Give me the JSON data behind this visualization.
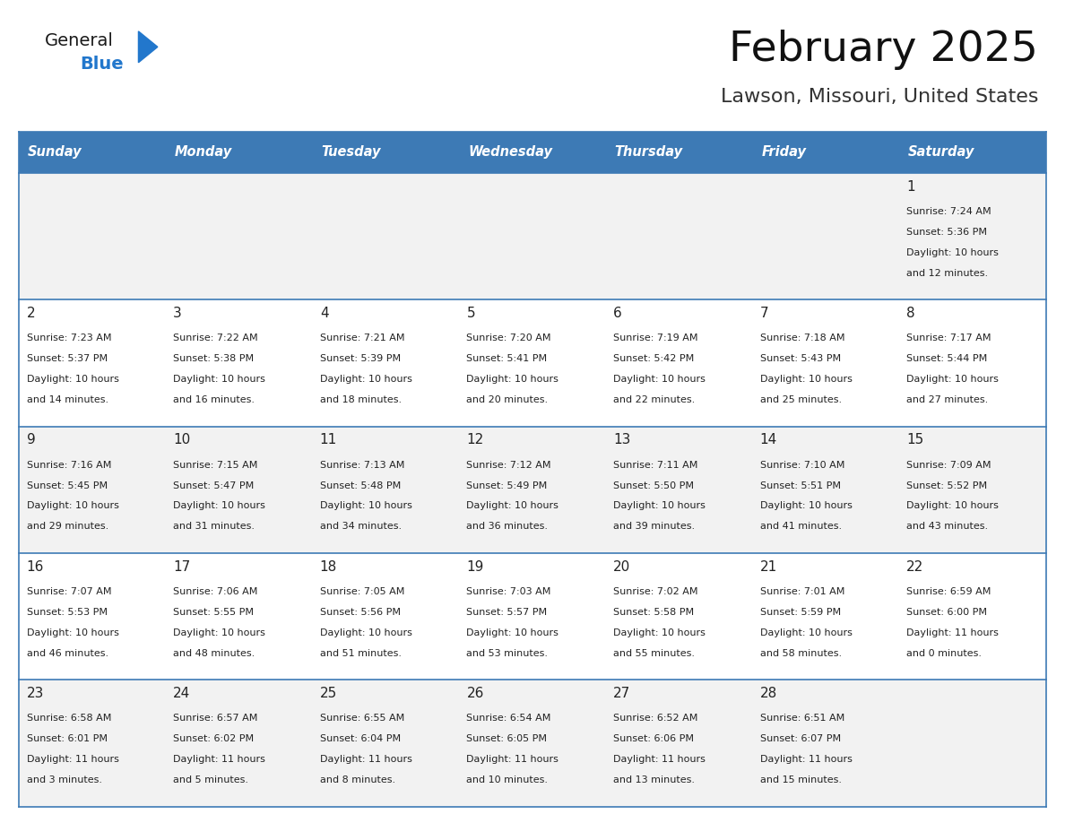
{
  "title": "February 2025",
  "subtitle": "Lawson, Missouri, United States",
  "header_bg": "#3D7AB5",
  "header_text_color": "#FFFFFF",
  "day_names": [
    "Sunday",
    "Monday",
    "Tuesday",
    "Wednesday",
    "Thursday",
    "Friday",
    "Saturday"
  ],
  "row_bg_odd": "#F2F2F2",
  "row_bg_even": "#FFFFFF",
  "cell_text_color": "#222222",
  "date_color": "#222222",
  "grid_line_color": "#3D7AB5",
  "logo_general_color": "#1a1a1a",
  "logo_blue_color": "#2277CC",
  "calendar_data": [
    [
      null,
      null,
      null,
      null,
      null,
      null,
      {
        "day": 1,
        "sunrise": "7:24 AM",
        "sunset": "5:36 PM",
        "daylight": "10 hours and 12 minutes"
      }
    ],
    [
      {
        "day": 2,
        "sunrise": "7:23 AM",
        "sunset": "5:37 PM",
        "daylight": "10 hours and 14 minutes"
      },
      {
        "day": 3,
        "sunrise": "7:22 AM",
        "sunset": "5:38 PM",
        "daylight": "10 hours and 16 minutes"
      },
      {
        "day": 4,
        "sunrise": "7:21 AM",
        "sunset": "5:39 PM",
        "daylight": "10 hours and 18 minutes"
      },
      {
        "day": 5,
        "sunrise": "7:20 AM",
        "sunset": "5:41 PM",
        "daylight": "10 hours and 20 minutes"
      },
      {
        "day": 6,
        "sunrise": "7:19 AM",
        "sunset": "5:42 PM",
        "daylight": "10 hours and 22 minutes"
      },
      {
        "day": 7,
        "sunrise": "7:18 AM",
        "sunset": "5:43 PM",
        "daylight": "10 hours and 25 minutes"
      },
      {
        "day": 8,
        "sunrise": "7:17 AM",
        "sunset": "5:44 PM",
        "daylight": "10 hours and 27 minutes"
      }
    ],
    [
      {
        "day": 9,
        "sunrise": "7:16 AM",
        "sunset": "5:45 PM",
        "daylight": "10 hours and 29 minutes"
      },
      {
        "day": 10,
        "sunrise": "7:15 AM",
        "sunset": "5:47 PM",
        "daylight": "10 hours and 31 minutes"
      },
      {
        "day": 11,
        "sunrise": "7:13 AM",
        "sunset": "5:48 PM",
        "daylight": "10 hours and 34 minutes"
      },
      {
        "day": 12,
        "sunrise": "7:12 AM",
        "sunset": "5:49 PM",
        "daylight": "10 hours and 36 minutes"
      },
      {
        "day": 13,
        "sunrise": "7:11 AM",
        "sunset": "5:50 PM",
        "daylight": "10 hours and 39 minutes"
      },
      {
        "day": 14,
        "sunrise": "7:10 AM",
        "sunset": "5:51 PM",
        "daylight": "10 hours and 41 minutes"
      },
      {
        "day": 15,
        "sunrise": "7:09 AM",
        "sunset": "5:52 PM",
        "daylight": "10 hours and 43 minutes"
      }
    ],
    [
      {
        "day": 16,
        "sunrise": "7:07 AM",
        "sunset": "5:53 PM",
        "daylight": "10 hours and 46 minutes"
      },
      {
        "day": 17,
        "sunrise": "7:06 AM",
        "sunset": "5:55 PM",
        "daylight": "10 hours and 48 minutes"
      },
      {
        "day": 18,
        "sunrise": "7:05 AM",
        "sunset": "5:56 PM",
        "daylight": "10 hours and 51 minutes"
      },
      {
        "day": 19,
        "sunrise": "7:03 AM",
        "sunset": "5:57 PM",
        "daylight": "10 hours and 53 minutes"
      },
      {
        "day": 20,
        "sunrise": "7:02 AM",
        "sunset": "5:58 PM",
        "daylight": "10 hours and 55 minutes"
      },
      {
        "day": 21,
        "sunrise": "7:01 AM",
        "sunset": "5:59 PM",
        "daylight": "10 hours and 58 minutes"
      },
      {
        "day": 22,
        "sunrise": "6:59 AM",
        "sunset": "6:00 PM",
        "daylight": "11 hours and 0 minutes"
      }
    ],
    [
      {
        "day": 23,
        "sunrise": "6:58 AM",
        "sunset": "6:01 PM",
        "daylight": "11 hours and 3 minutes"
      },
      {
        "day": 24,
        "sunrise": "6:57 AM",
        "sunset": "6:02 PM",
        "daylight": "11 hours and 5 minutes"
      },
      {
        "day": 25,
        "sunrise": "6:55 AM",
        "sunset": "6:04 PM",
        "daylight": "11 hours and 8 minutes"
      },
      {
        "day": 26,
        "sunrise": "6:54 AM",
        "sunset": "6:05 PM",
        "daylight": "11 hours and 10 minutes"
      },
      {
        "day": 27,
        "sunrise": "6:52 AM",
        "sunset": "6:06 PM",
        "daylight": "11 hours and 13 minutes"
      },
      {
        "day": 28,
        "sunrise": "6:51 AM",
        "sunset": "6:07 PM",
        "daylight": "11 hours and 15 minutes"
      },
      null
    ]
  ],
  "fig_width": 11.88,
  "fig_height": 9.18,
  "dpi": 100
}
